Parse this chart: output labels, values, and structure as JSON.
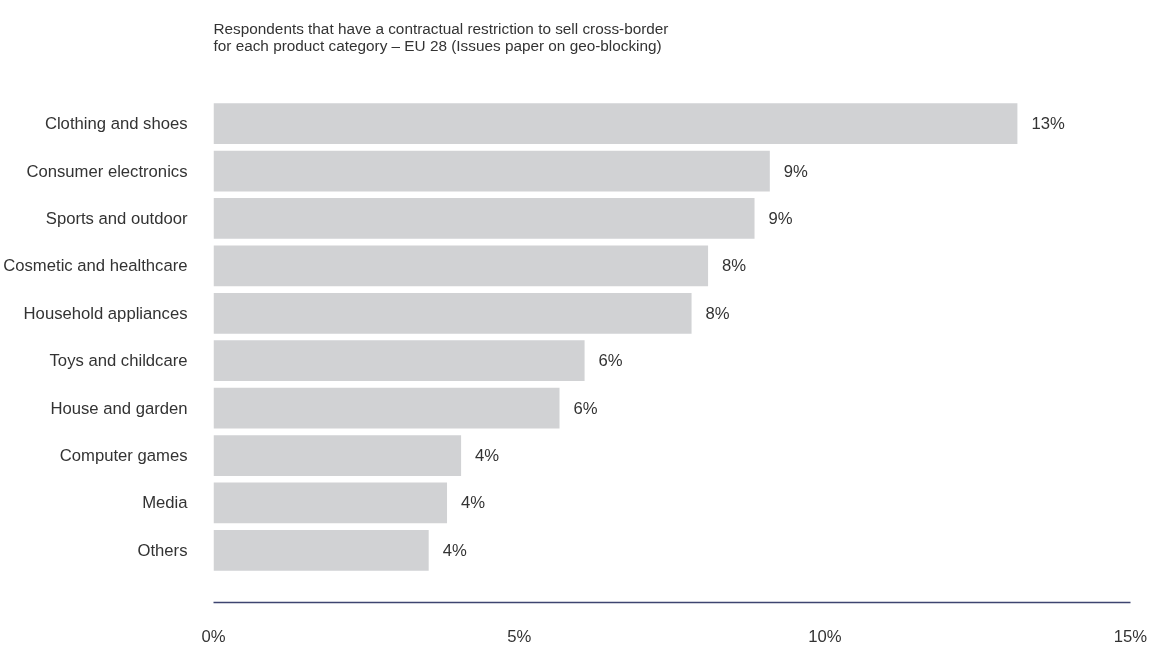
{
  "chart_data": {
    "type": "bar",
    "orientation": "horizontal",
    "title": "Respondents that have a contractual restriction to sell cross-border\n for each product category – EU 28 (Issues paper on geo-blocking)",
    "categories": [
      "Clothing and shoes",
      "Consumer electronics",
      "Sports and outdoor",
      "Cosmetic and healthcare",
      "Household appliances",
      "Toys and childcare",
      "House and garden",
      "Computer games",
      "Media",
      "Others"
    ],
    "values": [
      13.15,
      9.1,
      8.85,
      8.09,
      7.82,
      6.07,
      5.66,
      4.05,
      3.82,
      3.52
    ],
    "value_labels": [
      "13%",
      "9%",
      "9%",
      "8%",
      "8%",
      "6%",
      "6%",
      "4%",
      "4%",
      "4%"
    ],
    "color": "#d1d2d4",
    "xlim": [
      0,
      15
    ],
    "xticks": [
      {
        "value": 0,
        "label": "0%"
      },
      {
        "value": 5,
        "label": "5%"
      },
      {
        "value": 10,
        "label": "10%"
      },
      {
        "value": 15,
        "label": "15%"
      }
    ],
    "grid": false
  }
}
